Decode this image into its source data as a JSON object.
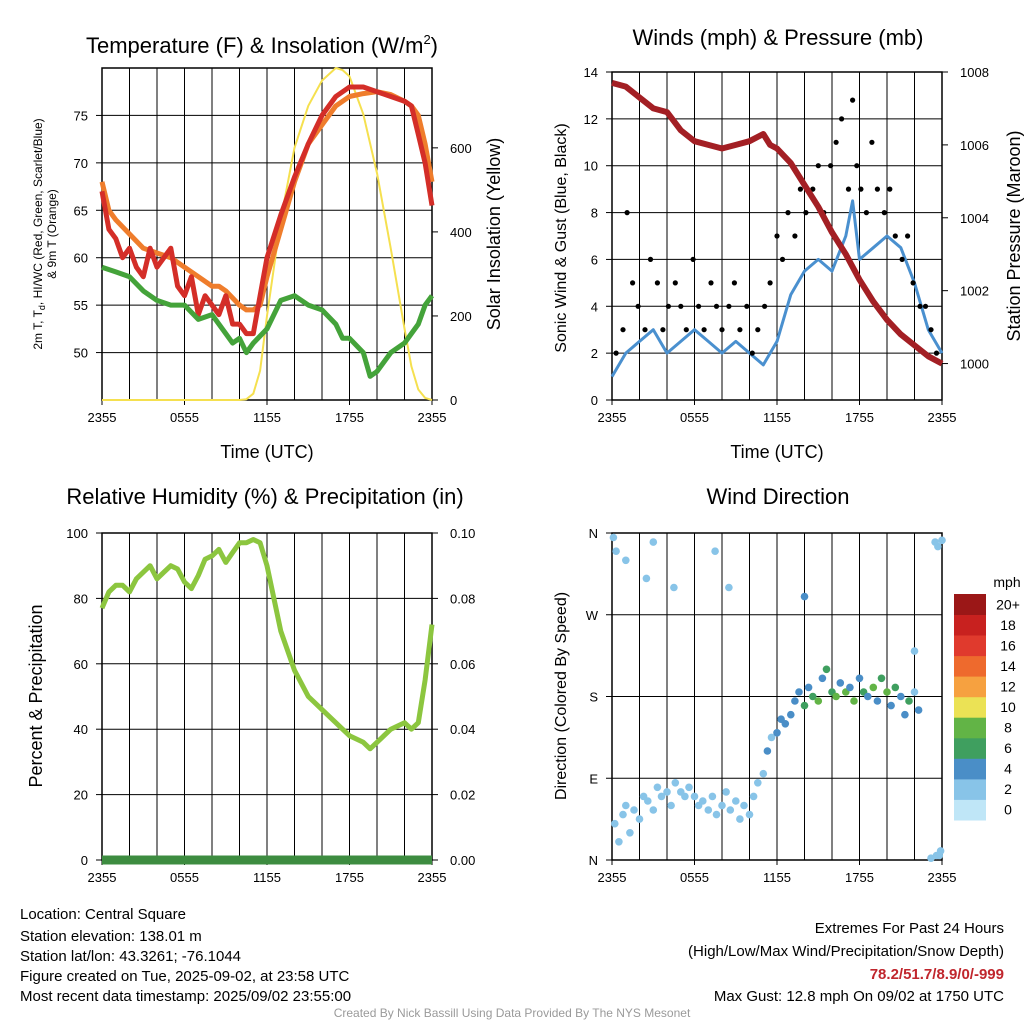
{
  "chart_data": [
    {
      "type": "line",
      "title": "Temperature (F) & Insolation (W/m",
      "title_sup": "2",
      "title_end": ")",
      "xlabel": "Time (UTC)",
      "ylabel_line1": "2m T, T",
      "ylabel_sub": "d",
      "ylabel_line1_end": ", HI/WC (Red, Green, Scarlet/Blue)",
      "ylabel_line2": "& 9m T (Orange)",
      "y2label": "Solar Insolation (Yellow)",
      "x_ticks": [
        "2355",
        "0555",
        "1155",
        "1755",
        "2355"
      ],
      "ylim": [
        45,
        80
      ],
      "y_ticks": [
        "50",
        "55",
        "60",
        "65",
        "70",
        "75"
      ],
      "y2lim": [
        0,
        790
      ],
      "y2_ticks": [
        "0",
        "200",
        "400",
        "600"
      ],
      "grid": true,
      "series": [
        {
          "color": "#d6a100",
          "alt_color": "#f5e04f",
          "axis": "y2",
          "x": [
            0,
            8,
            10,
            10.5,
            11,
            11.5,
            12,
            13,
            14,
            15,
            16,
            17,
            17.5,
            18,
            19,
            20,
            21,
            22,
            22.5,
            23,
            23.5,
            24
          ],
          "values": [
            0,
            0,
            0,
            2,
            15,
            70,
            200,
            430,
            600,
            700,
            760,
            790,
            785,
            770,
            680,
            540,
            360,
            170,
            80,
            25,
            5,
            0
          ]
        },
        {
          "color": "#ef7d2c",
          "axis": "y",
          "x": [
            0,
            0.5,
            1,
            2,
            3,
            4,
            5,
            6,
            7,
            8,
            8.5,
            9,
            10,
            10.5,
            11,
            11.5,
            12,
            13,
            14,
            15,
            16,
            17,
            18,
            19,
            20,
            21,
            22,
            22.5,
            23,
            23.5,
            24
          ],
          "values": [
            68,
            65,
            64,
            62.5,
            61,
            60.5,
            60,
            59,
            58,
            57,
            57,
            56.5,
            55,
            54.5,
            54.5,
            55,
            58,
            63,
            68,
            72,
            74,
            76,
            77,
            77.3,
            77.5,
            77.2,
            76.5,
            76,
            75,
            72,
            68
          ]
        },
        {
          "color": "#d42e28",
          "axis": "y",
          "x": [
            0,
            0.5,
            1,
            1.5,
            2,
            2.5,
            3,
            3.5,
            4,
            4.5,
            5,
            5.5,
            6,
            6.5,
            7,
            7.5,
            8,
            8.5,
            9,
            9.5,
            10,
            10.5,
            11,
            11.5,
            12,
            13,
            14,
            15,
            16,
            17,
            18,
            19,
            20,
            21,
            22,
            22.5,
            23,
            23.5,
            24
          ],
          "values": [
            67,
            63,
            62,
            60,
            61,
            59,
            58,
            61,
            59,
            60,
            61,
            57,
            56,
            58,
            54,
            56,
            55,
            54,
            56,
            53,
            53,
            52,
            52,
            56,
            60,
            64.5,
            68.5,
            72,
            75,
            77,
            78,
            78,
            77.5,
            77,
            76.5,
            76,
            73,
            70,
            65.5
          ]
        },
        {
          "color": "#44a33a",
          "axis": "y",
          "x": [
            0,
            1,
            2,
            3,
            4,
            5,
            6,
            7,
            8,
            9,
            9.5,
            10,
            10.5,
            11,
            12,
            13,
            14,
            15,
            16,
            17,
            17.5,
            18,
            19,
            19.5,
            20,
            21,
            22,
            23,
            23.5,
            24
          ],
          "values": [
            59,
            58.5,
            58,
            56.5,
            55.5,
            55,
            55,
            53.5,
            54,
            52,
            51,
            51.5,
            50,
            51,
            52.5,
            55.5,
            56,
            55,
            54.5,
            53,
            51.5,
            51.5,
            50,
            47.5,
            48,
            50,
            51,
            53,
            55,
            56
          ]
        }
      ]
    },
    {
      "type": "line",
      "title": "Winds (mph) & Pressure (mb)",
      "xlabel": "Time (UTC)",
      "ylabel": "Sonic Wind & Gust (Blue, Black)",
      "y2label": "Station Pressure (Maroon)",
      "x_ticks": [
        "2355",
        "0555",
        "1155",
        "1755",
        "2355"
      ],
      "ylim": [
        0,
        14
      ],
      "y_ticks": [
        "0",
        "2",
        "4",
        "6",
        "8",
        "10",
        "12",
        "14"
      ],
      "y2lim": [
        999,
        1008
      ],
      "y2_ticks": [
        "1000",
        "1002",
        "1004",
        "1006",
        "1008"
      ],
      "grid": true,
      "series": [
        {
          "name": "Sonic Wind",
          "color": "#4a90cf",
          "axis": "y",
          "x": [
            0,
            1,
            2,
            3,
            4,
            5,
            6,
            7,
            8,
            9,
            10,
            11,
            12,
            13,
            14,
            15,
            16,
            17,
            17.5,
            18,
            19,
            20,
            21,
            22,
            23,
            24
          ],
          "values": [
            1,
            2,
            2.5,
            3,
            2,
            2.5,
            3,
            2.5,
            2,
            2.5,
            2,
            1.5,
            2.5,
            4.5,
            5.5,
            6,
            5.5,
            7,
            8.5,
            6,
            6.5,
            7,
            6.5,
            5,
            3,
            2
          ]
        },
        {
          "name": "Gust",
          "color": "#000000",
          "axis": "y",
          "style": "points",
          "x": [
            0.3,
            0.8,
            1.1,
            1.5,
            1.9,
            2.4,
            2.8,
            3.3,
            3.7,
            4.1,
            4.6,
            5.0,
            5.4,
            5.9,
            6.3,
            6.7,
            7.2,
            7.6,
            8.0,
            8.5,
            8.9,
            9.3,
            9.8,
            10.2,
            10.6,
            11.1,
            11.5,
            12.0,
            12.4,
            12.8,
            13.3,
            13.7,
            14.1,
            14.6,
            15.0,
            15.4,
            15.9,
            16.3,
            16.7,
            17.2,
            17.5,
            17.8,
            18.1,
            18.5,
            18.9,
            19.3,
            19.8,
            20.2,
            20.6,
            21.1,
            21.5,
            21.9,
            22.4,
            22.8,
            23.2,
            23.6
          ],
          "values": [
            2,
            3,
            8,
            5,
            4,
            3,
            6,
            5,
            3,
            4,
            5,
            4,
            3,
            6,
            4,
            3,
            5,
            4,
            3,
            4,
            5,
            3,
            4,
            2,
            3,
            4,
            5,
            7,
            6,
            8,
            7,
            9,
            8,
            9,
            10,
            8,
            10,
            11,
            12,
            9,
            12.8,
            10,
            9,
            8,
            11,
            9,
            8,
            9,
            7,
            6,
            7,
            5,
            4,
            4,
            3,
            2
          ]
        },
        {
          "name": "Pressure",
          "color": "#a31f24",
          "axis": "y2",
          "x": [
            0,
            1,
            2,
            3,
            4,
            5,
            6,
            7,
            8,
            9,
            10,
            11,
            11.5,
            12,
            13,
            14,
            15,
            16,
            17,
            18,
            19,
            20,
            21,
            22,
            23,
            24
          ],
          "values": [
            1007.7,
            1007.6,
            1007.3,
            1007.0,
            1006.9,
            1006.4,
            1006.1,
            1006.0,
            1005.9,
            1006.0,
            1006.1,
            1006.3,
            1006.0,
            1005.9,
            1005.5,
            1004.9,
            1004.3,
            1003.6,
            1003.0,
            1002.3,
            1001.7,
            1001.2,
            1000.8,
            1000.5,
            1000.2,
            1000.0
          ]
        }
      ]
    },
    {
      "type": "line",
      "title": "Relative Humidity (%) & Precipitation (in)",
      "ylabel": "Percent & Precipitation",
      "x_ticks": [
        "2355",
        "0555",
        "1155",
        "1755",
        "2355"
      ],
      "ylim": [
        0,
        100
      ],
      "y_ticks": [
        "0",
        "20",
        "40",
        "60",
        "80",
        "100"
      ],
      "y2lim": [
        0,
        0.1
      ],
      "y2_ticks": [
        "0.00",
        "0.02",
        "0.04",
        "0.06",
        "0.08",
        "0.10"
      ],
      "grid": true,
      "series": [
        {
          "name": "RH",
          "color": "#8cc63f",
          "axis": "y",
          "x": [
            0,
            0.5,
            1,
            1.5,
            2,
            2.5,
            3,
            3.5,
            4,
            4.5,
            5,
            5.5,
            6,
            6.5,
            7,
            7.5,
            8,
            8.5,
            9,
            9.5,
            10,
            10.5,
            11,
            11.5,
            12,
            13,
            14,
            15,
            16,
            17,
            17.5,
            18,
            19,
            19.5,
            20,
            21,
            22,
            22.5,
            23,
            23.5,
            24
          ],
          "values": [
            77,
            82,
            84,
            84,
            82,
            86,
            88,
            90,
            86,
            88,
            90,
            89,
            85,
            83,
            87,
            92,
            93,
            95,
            91,
            94,
            97,
            97,
            98,
            97,
            90,
            70,
            58,
            50,
            46,
            42,
            40,
            38,
            36,
            34,
            36,
            40,
            42,
            40,
            42,
            55,
            72
          ]
        },
        {
          "name": "Precipitation",
          "color": "#3d8c40",
          "axis": "y2",
          "x": [
            0,
            24
          ],
          "values": [
            0,
            0
          ]
        }
      ]
    },
    {
      "type": "scatter",
      "title": "Wind Direction",
      "ylabel": "Direction (Colored By Speed)",
      "x_ticks": [
        "2355",
        "0555",
        "1155",
        "1755",
        "2355"
      ],
      "y_ticks": [
        "N",
        "E",
        "S",
        "W",
        "N"
      ],
      "ylim": [
        0,
        360
      ],
      "grid": true,
      "colorbar_title": "mph",
      "colorbar_labels": [
        "0",
        "2",
        "4",
        "6",
        "8",
        "10",
        "12",
        "14",
        "16",
        "18",
        "20+"
      ],
      "colorbar_colors": [
        "#bfe6f7",
        "#88c4e8",
        "#4a8ec7",
        "#3f9f5f",
        "#62b446",
        "#ebe255",
        "#f6a140",
        "#ee6a2d",
        "#e03a2d",
        "#c8211f",
        "#9b1717"
      ],
      "points": [
        [
          0.2,
          40,
          1
        ],
        [
          0.5,
          20,
          1
        ],
        [
          0.8,
          50,
          1
        ],
        [
          1.0,
          60,
          1
        ],
        [
          1.3,
          30,
          1
        ],
        [
          1.6,
          55,
          2
        ],
        [
          2.0,
          45,
          2
        ],
        [
          2.3,
          70,
          2
        ],
        [
          2.6,
          65,
          1
        ],
        [
          3.0,
          55,
          2
        ],
        [
          3.3,
          80,
          2
        ],
        [
          3.6,
          70,
          2
        ],
        [
          4.0,
          75,
          2
        ],
        [
          4.3,
          60,
          1
        ],
        [
          4.6,
          85,
          2
        ],
        [
          5.0,
          75,
          2
        ],
        [
          5.3,
          70,
          2
        ],
        [
          5.6,
          80,
          2
        ],
        [
          6.0,
          70,
          2
        ],
        [
          6.3,
          60,
          2
        ],
        [
          6.6,
          65,
          2
        ],
        [
          7.0,
          55,
          2
        ],
        [
          7.3,
          70,
          1
        ],
        [
          7.6,
          50,
          2
        ],
        [
          8.0,
          60,
          2
        ],
        [
          8.3,
          75,
          2
        ],
        [
          8.6,
          55,
          1
        ],
        [
          9.0,
          65,
          2
        ],
        [
          9.3,
          45,
          2
        ],
        [
          9.6,
          60,
          2
        ],
        [
          10.0,
          50,
          1
        ],
        [
          10.3,
          70,
          2
        ],
        [
          10.6,
          85,
          2
        ],
        [
          11.0,
          95,
          2
        ],
        [
          11.3,
          120,
          3
        ],
        [
          11.6,
          135,
          2
        ],
        [
          12.0,
          140,
          3
        ],
        [
          12.3,
          155,
          3
        ],
        [
          12.6,
          150,
          4
        ],
        [
          13.0,
          160,
          3
        ],
        [
          13.3,
          175,
          4
        ],
        [
          13.6,
          185,
          4
        ],
        [
          14.0,
          170,
          5
        ],
        [
          14.3,
          190,
          4
        ],
        [
          14.6,
          180,
          6
        ],
        [
          15.0,
          175,
          7
        ],
        [
          15.3,
          200,
          4
        ],
        [
          15.6,
          210,
          6
        ],
        [
          16.0,
          185,
          5
        ],
        [
          16.3,
          180,
          7
        ],
        [
          16.6,
          195,
          4
        ],
        [
          17.0,
          185,
          8
        ],
        [
          17.3,
          190,
          3
        ],
        [
          17.6,
          175,
          7
        ],
        [
          18.0,
          200,
          4
        ],
        [
          18.3,
          185,
          6
        ],
        [
          18.6,
          180,
          3
        ],
        [
          19.0,
          190,
          8
        ],
        [
          19.3,
          175,
          4
        ],
        [
          19.6,
          200,
          5
        ],
        [
          20.0,
          185,
          7
        ],
        [
          20.3,
          170,
          3
        ],
        [
          20.6,
          190,
          6
        ],
        [
          21.0,
          180,
          4
        ],
        [
          21.3,
          160,
          3
        ],
        [
          21.6,
          175,
          5
        ],
        [
          22.0,
          185,
          2
        ],
        [
          22.3,
          165,
          4
        ],
        [
          23.5,
          350,
          1
        ],
        [
          23.7,
          345,
          1
        ],
        [
          23.8,
          5,
          1
        ],
        [
          23.9,
          10,
          2
        ],
        [
          0.3,
          340,
          1
        ],
        [
          1.0,
          330,
          1
        ],
        [
          2.5,
          310,
          1
        ],
        [
          3.0,
          350,
          1
        ],
        [
          4.5,
          300,
          2
        ],
        [
          8.5,
          300,
          1
        ],
        [
          14.0,
          290,
          3
        ],
        [
          22.0,
          230,
          2
        ],
        [
          24.0,
          352,
          1
        ],
        [
          23.6,
          5,
          1
        ],
        [
          23.2,
          2,
          2
        ],
        [
          0.1,
          355,
          1
        ],
        [
          7.5,
          340,
          1
        ]
      ]
    }
  ],
  "info": {
    "location": "Location: Central Square",
    "elevation": "Station elevation: 138.01 m",
    "latlon": "Station lat/lon: 43.3261; -76.1044",
    "created": "Figure created on Tue, 2025-09-02, at 23:58 UTC",
    "recent": "Most recent data timestamp: 2025/09/02 23:55:00"
  },
  "extremes": {
    "title": "Extremes For Past 24 Hours",
    "subtitle": "(High/Low/Max Wind/Precipitation/Snow Depth)",
    "values": "78.2/51.7/8.9/0/-999",
    "gust": "Max Gust: 12.8 mph On 09/02 at 1750 UTC"
  },
  "credit": "Created By Nick Bassill Using Data Provided By The NYS Mesonet"
}
